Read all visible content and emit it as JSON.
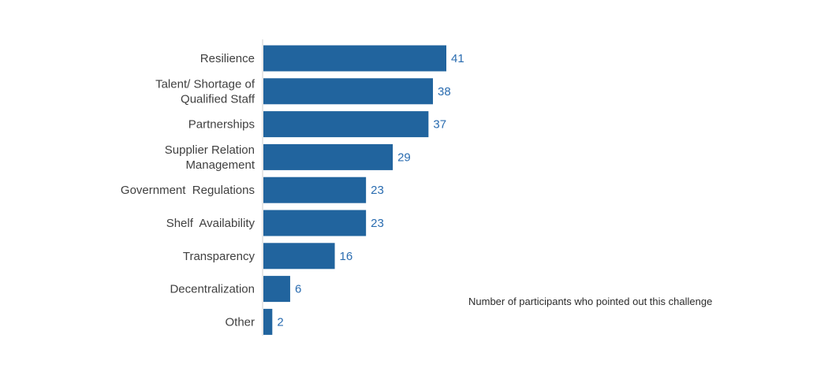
{
  "chart_data": {
    "type": "bar",
    "orientation": "horizontal",
    "categories": [
      [
        "Resilience"
      ],
      [
        "Talent/ Shortage of",
        "Qualified Staff"
      ],
      [
        "Partnerships"
      ],
      [
        "Supplier Relation",
        "Management"
      ],
      [
        "Government  Regulations"
      ],
      [
        "Shelf  Availability"
      ],
      [
        "Transparency"
      ],
      [
        "Decentralization"
      ],
      [
        "Other"
      ]
    ],
    "values": [
      41,
      38,
      37,
      29,
      23,
      23,
      16,
      6,
      2
    ],
    "xlim": [
      0,
      41
    ],
    "grid": false,
    "bar_color": "#21649e",
    "value_label_color": "#2a6cb0",
    "axis_color": "#cfcfcf"
  },
  "annotation": "Number of participants who pointed out this challenge"
}
